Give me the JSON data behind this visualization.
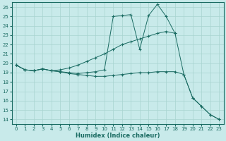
{
  "xlabel": "Humidex (Indice chaleur)",
  "xlim": [
    -0.5,
    23.5
  ],
  "ylim": [
    13.5,
    26.5
  ],
  "xticks": [
    0,
    1,
    2,
    3,
    4,
    5,
    6,
    7,
    8,
    9,
    10,
    11,
    12,
    13,
    14,
    15,
    16,
    17,
    18,
    19,
    20,
    21,
    22,
    23
  ],
  "yticks": [
    14,
    15,
    16,
    17,
    18,
    19,
    20,
    21,
    22,
    23,
    24,
    25,
    26
  ],
  "bg_color": "#c8eaea",
  "line_color": "#1a6b62",
  "grid_color": "#a8d4d0",
  "line1_x": [
    0,
    1,
    2,
    3,
    4,
    5,
    6,
    7,
    8,
    9,
    10,
    11,
    12,
    13,
    14,
    15,
    16,
    17,
    18,
    19,
    20,
    21,
    22,
    23
  ],
  "line1_y": [
    19.8,
    19.3,
    19.2,
    19.4,
    19.2,
    19.1,
    19.0,
    18.9,
    19.0,
    19.1,
    19.3,
    25.0,
    25.1,
    25.2,
    21.5,
    25.1,
    26.3,
    25.0,
    23.2,
    18.8,
    16.3,
    15.4,
    14.5,
    14.0
  ],
  "line2_x": [
    0,
    1,
    2,
    3,
    4,
    5,
    6,
    7,
    8,
    9,
    10,
    11,
    12,
    13,
    14,
    15,
    16,
    17,
    18
  ],
  "line2_y": [
    19.8,
    19.3,
    19.2,
    19.4,
    19.2,
    19.3,
    19.5,
    19.8,
    20.2,
    20.6,
    21.0,
    21.5,
    22.0,
    22.3,
    22.6,
    22.9,
    23.2,
    23.4,
    23.2
  ],
  "line3_x": [
    0,
    1,
    2,
    3,
    4,
    5,
    6,
    7,
    8,
    9,
    10,
    11,
    12,
    13,
    14,
    15,
    16,
    17,
    18,
    19,
    20,
    21,
    22,
    23
  ],
  "line3_y": [
    19.8,
    19.3,
    19.2,
    19.4,
    19.2,
    19.1,
    18.9,
    18.8,
    18.7,
    18.6,
    18.6,
    18.7,
    18.8,
    18.9,
    19.0,
    19.0,
    19.1,
    19.1,
    19.1,
    18.8,
    16.3,
    15.4,
    14.5,
    14.0
  ]
}
